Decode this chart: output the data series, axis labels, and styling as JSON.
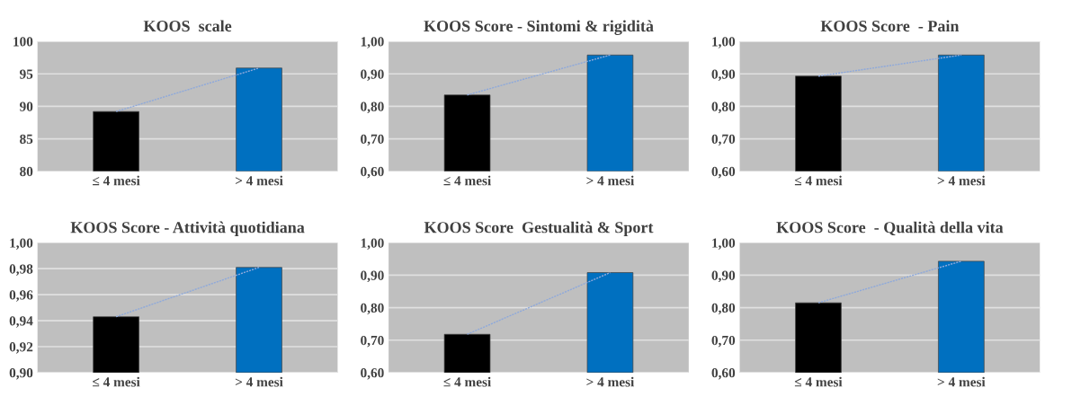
{
  "chart_data": [
    {
      "type": "bar",
      "title": "KOOS  scale",
      "categories": [
        "≤ 4 mesi",
        "> 4 mesi"
      ],
      "series": [
        {
          "colors": [
            "#000000",
            "#0070c0"
          ],
          "values": [
            89.2,
            95.9
          ]
        },
        {
          "type": "line",
          "color": "#8ea9db",
          "line_style": "dotted",
          "values": [
            89.2,
            95.9
          ]
        }
      ],
      "ylim": [
        80,
        100
      ],
      "yticks": [
        80,
        85,
        90,
        95,
        100
      ],
      "grid": "y"
    },
    {
      "type": "bar",
      "title": "KOOS Score - Sintomi & rigidità",
      "categories": [
        "≤ 4 mesi",
        "> 4 mesi"
      ],
      "series": [
        {
          "colors": [
            "#000000",
            "#0070c0"
          ],
          "values": [
            0.835,
            0.958
          ]
        },
        {
          "type": "line",
          "color": "#8ea9db",
          "line_style": "dotted",
          "values": [
            0.835,
            0.958
          ]
        }
      ],
      "ylim": [
        0.6,
        1.0
      ],
      "yticks": [
        {
          "value": 0.6,
          "label": "0,60"
        },
        {
          "value": 0.7,
          "label": "0,70"
        },
        {
          "value": 0.8,
          "label": "0,80"
        },
        {
          "value": 0.9,
          "label": "0,90"
        },
        {
          "value": 1.0,
          "label": "1,00"
        }
      ],
      "grid": "y"
    },
    {
      "type": "bar",
      "title": "KOOS Score  - Pain",
      "categories": [
        "≤ 4 mesi",
        "> 4 mesi"
      ],
      "series": [
        {
          "colors": [
            "#000000",
            "#0070c0"
          ],
          "values": [
            0.893,
            0.958
          ]
        },
        {
          "type": "line",
          "color": "#8ea9db",
          "line_style": "dotted",
          "values": [
            0.893,
            0.958
          ]
        }
      ],
      "ylim": [
        0.6,
        1.0
      ],
      "yticks": [
        {
          "value": 0.6,
          "label": "0,60"
        },
        {
          "value": 0.7,
          "label": "0,70"
        },
        {
          "value": 0.8,
          "label": "0,80"
        },
        {
          "value": 0.9,
          "label": "0,90"
        },
        {
          "value": 1.0,
          "label": "1,00"
        }
      ],
      "grid": "y"
    },
    {
      "type": "bar",
      "title": "KOOS Score - Attività quotidiana",
      "categories": [
        "≤ 4 mesi",
        "> 4 mesi"
      ],
      "series": [
        {
          "colors": [
            "#000000",
            "#0070c0"
          ],
          "values": [
            0.943,
            0.981
          ]
        },
        {
          "type": "line",
          "color": "#8ea9db",
          "line_style": "dotted",
          "values": [
            0.943,
            0.981
          ]
        }
      ],
      "ylim": [
        0.9,
        1.0
      ],
      "yticks": [
        {
          "value": 0.9,
          "label": "0,90"
        },
        {
          "value": 0.92,
          "label": "0,92"
        },
        {
          "value": 0.94,
          "label": "0,94"
        },
        {
          "value": 0.96,
          "label": "0,96"
        },
        {
          "value": 0.98,
          "label": "0,98"
        },
        {
          "value": 1.0,
          "label": "1,00"
        }
      ],
      "grid": "y"
    },
    {
      "type": "bar",
      "title": "KOOS Score  Gestualità & Sport",
      "categories": [
        "≤ 4 mesi",
        "> 4 mesi"
      ],
      "series": [
        {
          "colors": [
            "#000000",
            "#0070c0"
          ],
          "values": [
            0.718,
            0.908
          ]
        },
        {
          "type": "line",
          "color": "#8ea9db",
          "line_style": "dotted",
          "values": [
            0.718,
            0.908
          ]
        }
      ],
      "ylim": [
        0.6,
        1.0
      ],
      "yticks": [
        {
          "value": 0.6,
          "label": "0,60"
        },
        {
          "value": 0.7,
          "label": "0,70"
        },
        {
          "value": 0.8,
          "label": "0,80"
        },
        {
          "value": 0.9,
          "label": "0,90"
        },
        {
          "value": 1.0,
          "label": "1,00"
        }
      ],
      "grid": "y"
    },
    {
      "type": "bar",
      "title": "KOOS Score  - Qualità della vita",
      "categories": [
        "≤ 4 mesi",
        "> 4 mesi"
      ],
      "series": [
        {
          "colors": [
            "#000000",
            "#0070c0"
          ],
          "values": [
            0.815,
            0.943
          ]
        },
        {
          "type": "line",
          "color": "#8ea9db",
          "line_style": "dotted",
          "values": [
            0.815,
            0.943
          ]
        }
      ],
      "ylim": [
        0.6,
        1.0
      ],
      "yticks": [
        {
          "value": 0.6,
          "label": "0,60"
        },
        {
          "value": 0.7,
          "label": "0,70"
        },
        {
          "value": 0.8,
          "label": "0,80"
        },
        {
          "value": 0.9,
          "label": "0,90"
        },
        {
          "value": 1.0,
          "label": "1,00"
        }
      ],
      "grid": "y"
    }
  ]
}
